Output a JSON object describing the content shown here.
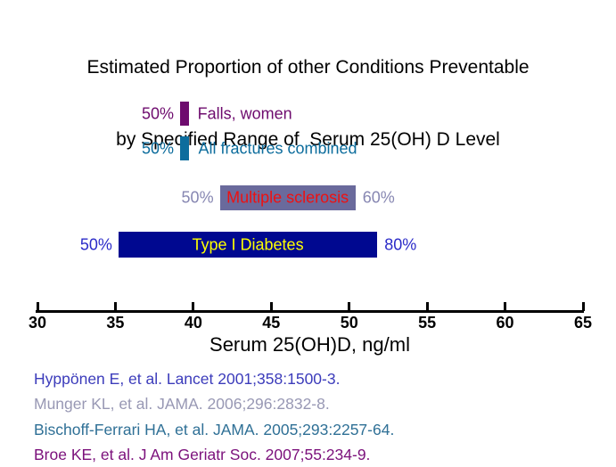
{
  "title": {
    "line1": "Estimated Proportion of other Conditions Preventable",
    "line2": "by Specified Range of  Serum 25(OH) D Level"
  },
  "chart_data": {
    "type": "bar",
    "orientation": "horizontal",
    "title": "Estimated Proportion of other Conditions Preventable by Specified Range of Serum 25(OH) D Level",
    "xlabel": "Serum 25(OH)D, ng/ml",
    "ylabel": "",
    "xlim": [
      30,
      65
    ],
    "x_ticks": [
      30,
      35,
      40,
      45,
      50,
      55,
      60,
      65
    ],
    "grid": false,
    "legend": "none",
    "series": [
      {
        "name": "Falls, women",
        "serum_range_ngml": [
          39.15,
          39.7
        ],
        "pct_left": "50%",
        "pct_right": null,
        "bar_color": "#6E0B6E",
        "name_color": "#6E0B6E",
        "side_label_color": "#6E0B6E",
        "label_placement": "right"
      },
      {
        "name": "All fractures combined",
        "serum_range_ngml": [
          39.15,
          39.75
        ],
        "pct_left": "50%",
        "pct_right": null,
        "bar_color": "#0D6D9D",
        "name_color": "#0D6D9D",
        "side_label_color": "#0D6D9D",
        "label_placement": "right"
      },
      {
        "name": "Multiple sclerosis",
        "serum_range_ngml": [
          41.7,
          50.4
        ],
        "pct_left": "50%",
        "pct_right": "60%",
        "bar_color": "#6A6A9C",
        "name_color": "#EE1111",
        "side_label_color": "#8787B2",
        "label_placement": "inside"
      },
      {
        "name": "Type I Diabetes",
        "serum_range_ngml": [
          35.2,
          51.8
        ],
        "pct_left": "50%",
        "pct_right": "80%",
        "bar_color": "#000890",
        "name_color": "#FFFF00",
        "side_label_color": "#2B2BC8",
        "label_placement": "inside"
      }
    ]
  },
  "references": [
    {
      "text": "Hyppönen E, et al. Lancet 2001;358:1500-3.",
      "color": "#3C3CBB"
    },
    {
      "text": "Munger KL, et al. JAMA. 2006;296:2832-8.",
      "color": "#9898B4"
    },
    {
      "text": "Bischoff-Ferrari HA, et al. JAMA. 2005;293:2257-64.",
      "color": "#2F7096"
    },
    {
      "text": "Broe KE, et al. J Am Geriatr Soc. 2007;55:234-9.",
      "color": "#7B107B"
    }
  ]
}
